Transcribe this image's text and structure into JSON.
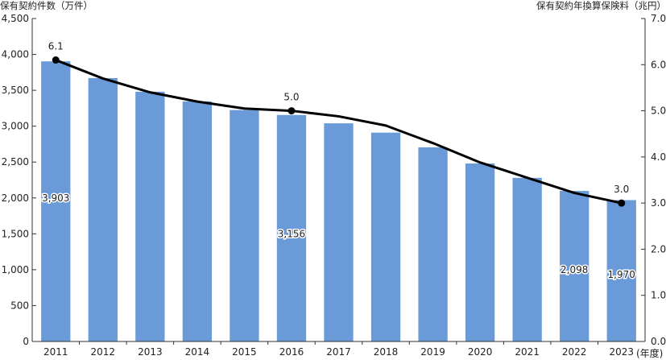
{
  "chart_data": {
    "type": "bar+line",
    "y_left_label": "保有契約件数（万件）",
    "y_right_label": "保有契約年換算保険料（兆円）",
    "x_unit_label": "(年度)",
    "categories": [
      "2011",
      "2012",
      "2013",
      "2014",
      "2015",
      "2016",
      "2017",
      "2018",
      "2019",
      "2020",
      "2021",
      "2022",
      "2023"
    ],
    "left_ylim": [
      0,
      4500
    ],
    "left_ticks": [
      "0",
      "500",
      "1,000",
      "1,500",
      "2,000",
      "2,500",
      "3,000",
      "3,500",
      "4,000",
      "4,500"
    ],
    "right_ylim": [
      0,
      7.0
    ],
    "right_ticks": [
      "0.0",
      "1.0",
      "2.0",
      "3.0",
      "4.0",
      "5.0",
      "6.0",
      "7.0"
    ],
    "bar_series": {
      "values": [
        3903,
        3670,
        3480,
        3345,
        3225,
        3156,
        3040,
        2910,
        2705,
        2480,
        2280,
        2098,
        1970
      ],
      "color": "#6a9bd8",
      "data_labels": [
        {
          "index": 0,
          "text": "3,903"
        },
        {
          "index": 5,
          "text": "3,156"
        },
        {
          "index": 11,
          "text": "2,098"
        },
        {
          "index": 12,
          "text": "1,970"
        }
      ]
    },
    "line_series": {
      "values": [
        6.1,
        5.7,
        5.4,
        5.2,
        5.05,
        5.0,
        4.88,
        4.68,
        4.3,
        3.88,
        3.55,
        3.22,
        3.0
      ],
      "color": "#000000",
      "data_labels": [
        {
          "index": 0,
          "text": "6.1"
        },
        {
          "index": 5,
          "text": "5.0"
        },
        {
          "index": 12,
          "text": "3.0"
        }
      ]
    },
    "grid": false
  }
}
